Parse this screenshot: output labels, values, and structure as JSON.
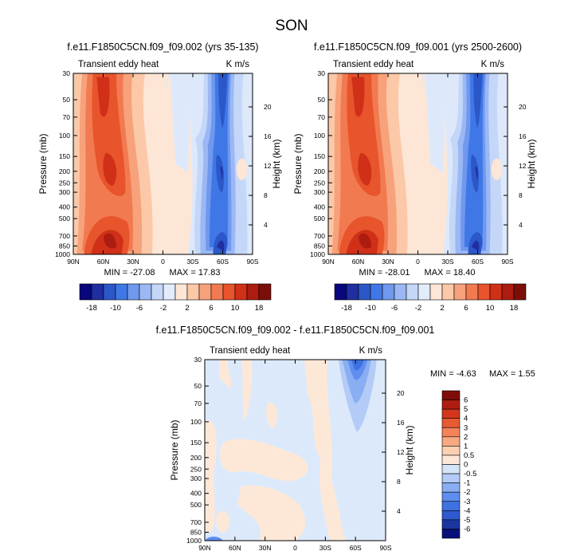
{
  "figure_title": "SON",
  "colors": {
    "main_scale": [
      "#08077c",
      "#1f2ea0",
      "#2c57c8",
      "#3f78e6",
      "#6f98ee",
      "#9bb8f4",
      "#c4d7f8",
      "#e2ecfb",
      "#fde6d6",
      "#fbc8a8",
      "#f7a27a",
      "#f27a50",
      "#e8542c",
      "#cf3017",
      "#ac1c10",
      "#7c0e0a"
    ],
    "diff_scale": [
      "#06107a",
      "#1a37a0",
      "#2e5ad0",
      "#3e72e2",
      "#5f8ef0",
      "#89aef2",
      "#b3cbf6",
      "#d5e5f8",
      "#fde7d7",
      "#fbd0b3",
      "#f7a982",
      "#f28458",
      "#e85a32",
      "#d3361c",
      "#b01d10",
      "#7f0c08"
    ],
    "axis": "#000000",
    "background": "#ffffff"
  },
  "chart_data": [
    {
      "type": "heatmap",
      "id": "panel-1",
      "title": "f.e11.F1850C5CN.f09_f09.002 (yrs 35-135)",
      "subtitle_left": "Transient eddy heat",
      "subtitle_right": "K m/s",
      "xlabel": "",
      "ylabel": "Pressure (mb)",
      "ylabel_right": "Height (km)",
      "x_ticks": [
        "90N",
        "60N",
        "30N",
        "0",
        "30S",
        "60S",
        "90S"
      ],
      "x_values": [
        90,
        60,
        30,
        0,
        -30,
        -60,
        -90
      ],
      "y_ticks": [
        "30",
        "50",
        "70",
        "100",
        "150",
        "200",
        "250",
        "300",
        "400",
        "500",
        "700",
        "850",
        "1000"
      ],
      "y_values": [
        30,
        50,
        70,
        100,
        150,
        200,
        250,
        300,
        400,
        500,
        700,
        850,
        1000
      ],
      "y_right_ticks": [
        "20",
        "16",
        "12",
        "8",
        "4"
      ],
      "y_right_values": [
        20,
        16,
        12,
        8,
        4
      ],
      "ylim": [
        1000,
        30
      ],
      "xlim": [
        90,
        -90
      ],
      "min_label": "MIN = -27.08",
      "max_label": "MAX = 17.83",
      "min": -27.08,
      "max": 17.83,
      "colorbar": {
        "orientation": "horizontal",
        "tick_labels": [
          "-18",
          "-10",
          "-6",
          "-2",
          "2",
          "6",
          "10",
          "18"
        ],
        "levels": [
          -18,
          -14,
          -10,
          -8,
          -6,
          -4,
          -2,
          -1,
          1,
          2,
          4,
          6,
          8,
          10,
          14,
          18
        ]
      }
    },
    {
      "type": "heatmap",
      "id": "panel-2",
      "title": "f.e11.F1850C5CN.f09_f09.001 (yrs 2500-2600)",
      "subtitle_left": "Transient eddy heat",
      "subtitle_right": "K m/s",
      "xlabel": "",
      "ylabel": "Pressure (mb)",
      "ylabel_right": "Height (km)",
      "x_ticks": [
        "90N",
        "60N",
        "30N",
        "0",
        "30S",
        "60S",
        "90S"
      ],
      "x_values": [
        90,
        60,
        30,
        0,
        -30,
        -60,
        -90
      ],
      "y_ticks": [
        "30",
        "50",
        "70",
        "100",
        "150",
        "200",
        "250",
        "300",
        "400",
        "500",
        "700",
        "850",
        "1000"
      ],
      "y_values": [
        30,
        50,
        70,
        100,
        150,
        200,
        250,
        300,
        400,
        500,
        700,
        850,
        1000
      ],
      "y_right_ticks": [
        "20",
        "16",
        "12",
        "8",
        "4"
      ],
      "y_right_values": [
        20,
        16,
        12,
        8,
        4
      ],
      "ylim": [
        1000,
        30
      ],
      "xlim": [
        90,
        -90
      ],
      "min_label": "MIN = -28.01",
      "max_label": "MAX = 18.40",
      "min": -28.01,
      "max": 18.4,
      "colorbar": {
        "orientation": "horizontal",
        "tick_labels": [
          "-18",
          "-10",
          "-6",
          "-2",
          "2",
          "6",
          "10",
          "18"
        ],
        "levels": [
          -18,
          -14,
          -10,
          -8,
          -6,
          -4,
          -2,
          -1,
          1,
          2,
          4,
          6,
          8,
          10,
          14,
          18
        ]
      }
    },
    {
      "type": "heatmap",
      "id": "panel-diff",
      "title": "f.e11.F1850C5CN.f09_f09.002 - f.e11.F1850C5CN.f09_f09.001",
      "subtitle_left": "Transient eddy heat",
      "subtitle_right": "K m/s",
      "xlabel": "",
      "ylabel": "Pressure (mb)",
      "ylabel_right": "Height (km)",
      "x_ticks": [
        "90N",
        "60N",
        "30N",
        "0",
        "30S",
        "60S",
        "90S"
      ],
      "x_values": [
        90,
        60,
        30,
        0,
        -30,
        -60,
        -90
      ],
      "y_ticks": [
        "30",
        "50",
        "70",
        "100",
        "150",
        "200",
        "250",
        "300",
        "400",
        "500",
        "700",
        "850",
        "1000"
      ],
      "y_values": [
        30,
        50,
        70,
        100,
        150,
        200,
        250,
        300,
        400,
        500,
        700,
        850,
        1000
      ],
      "y_right_ticks": [
        "20",
        "16",
        "12",
        "8",
        "4"
      ],
      "y_right_values": [
        20,
        16,
        12,
        8,
        4
      ],
      "ylim": [
        1000,
        30
      ],
      "xlim": [
        90,
        -90
      ],
      "min_label": "MIN =  -4.63",
      "max_label": "MAX =   1.55",
      "min": -4.63,
      "max": 1.55,
      "colorbar": {
        "orientation": "vertical",
        "tick_labels": [
          "6",
          "5",
          "4",
          "3",
          "2",
          "1",
          "0.5",
          "0",
          "-0.5",
          "-1",
          "-2",
          "-3",
          "-4",
          "-5",
          "-6"
        ],
        "levels": [
          6,
          5,
          4,
          3,
          2,
          1,
          0.5,
          0,
          -0.5,
          -1,
          -2,
          -3,
          -4,
          -5,
          -6
        ]
      }
    }
  ]
}
